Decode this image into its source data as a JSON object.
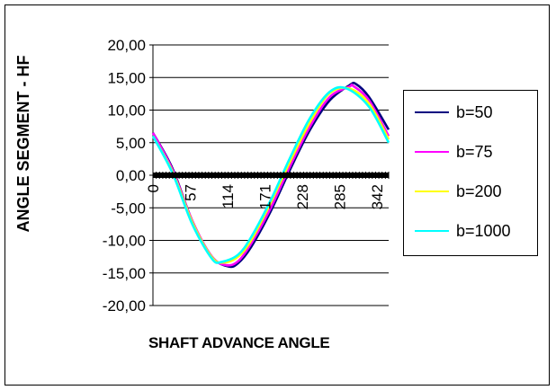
{
  "chart_data": {
    "type": "line",
    "title": "",
    "xlabel": "SHAFT ADVANCE ANGLE",
    "ylabel": "ANGLE SEGMENT - HF",
    "ylim": [
      -20,
      20
    ],
    "xlim": [
      0,
      360
    ],
    "x_ticks": [
      "0",
      "57",
      "114",
      "171",
      "228",
      "285",
      "342"
    ],
    "y_ticks": [
      "20,00",
      "15,00",
      "10,00",
      "5,00",
      "0,00",
      "-5,00",
      "-10,00",
      "-15,00",
      "-20,00"
    ],
    "grid": "horizontal",
    "legend_position": "right",
    "series": [
      {
        "name": "b=50",
        "color": "#000080",
        "x": [
          0,
          30,
          60,
          90,
          115,
          130,
          150,
          180,
          210,
          240,
          270,
          300,
          310,
          330,
          360
        ],
        "y": [
          6.5,
          1.0,
          -7.0,
          -12.5,
          -14.0,
          -13.5,
          -11.0,
          -5.5,
          1.0,
          7.0,
          11.5,
          13.8,
          14.0,
          12.0,
          7.0
        ]
      },
      {
        "name": "b=75",
        "color": "#FF00FF",
        "x": [
          0,
          30,
          60,
          90,
          112,
          130,
          150,
          180,
          210,
          240,
          270,
          300,
          306,
          330,
          360
        ],
        "y": [
          6.5,
          0.8,
          -7.0,
          -12.5,
          -13.8,
          -13.2,
          -10.5,
          -5.0,
          1.5,
          7.5,
          12.0,
          13.6,
          13.7,
          11.5,
          6.0
        ]
      },
      {
        "name": "b=200",
        "color": "#FFFF00",
        "x": [
          0,
          30,
          60,
          90,
          108,
          130,
          150,
          180,
          210,
          240,
          270,
          300,
          330,
          360
        ],
        "y": [
          6.0,
          0.5,
          -7.2,
          -12.6,
          -13.4,
          -12.5,
          -10.0,
          -4.2,
          2.2,
          8.2,
          12.6,
          13.3,
          11.0,
          5.5
        ]
      },
      {
        "name": "b=1000",
        "color": "#00FFFF",
        "x": [
          0,
          30,
          60,
          90,
          105,
          130,
          150,
          180,
          210,
          240,
          270,
          296,
          330,
          360
        ],
        "y": [
          6.0,
          0.3,
          -7.5,
          -12.8,
          -13.3,
          -12.2,
          -9.5,
          -3.8,
          2.8,
          8.8,
          12.8,
          13.3,
          10.5,
          5.0
        ]
      }
    ]
  }
}
